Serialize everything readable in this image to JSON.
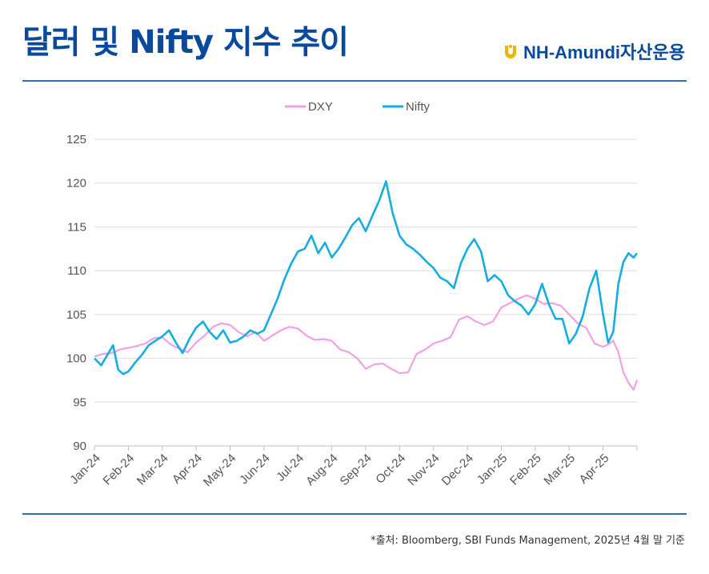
{
  "header": {
    "title": "달러 및 Nifty 지수 추이",
    "brand": "NH-Amundi자산운용",
    "brand_color": "#0a4a9e",
    "logo_color": "#f0b400"
  },
  "footer": {
    "source": "*출처: Bloomberg, SBI Funds Management, 2025년 4월 말 기준"
  },
  "chart_data": {
    "type": "line",
    "title": "",
    "xlabel": "",
    "ylabel": "",
    "ylim": [
      90,
      125
    ],
    "yticks": [
      90,
      95,
      100,
      105,
      110,
      115,
      120,
      125
    ],
    "xlim": [
      0,
      16
    ],
    "categories": [
      "Jan-24",
      "Feb-24",
      "Mar-24",
      "Apr-24",
      "May-24",
      "Jun-24",
      "Jul-24",
      "Aug-24",
      "Sep-24",
      "Oct-24",
      "Nov-24",
      "Dec-24",
      "Jan-25",
      "Feb-25",
      "Mar-25",
      "Apr-25"
    ],
    "grid": "horizontal",
    "legend": "top-center",
    "series": [
      {
        "name": "DXY",
        "color": "#f2a0e6",
        "x": [
          0,
          0.25,
          0.5,
          0.75,
          1.0,
          1.25,
          1.5,
          1.75,
          2.0,
          2.25,
          2.5,
          2.75,
          3.0,
          3.25,
          3.5,
          3.75,
          4.0,
          4.25,
          4.5,
          4.75,
          5.0,
          5.25,
          5.5,
          5.75,
          6.0,
          6.25,
          6.5,
          6.75,
          7.0,
          7.25,
          7.5,
          7.75,
          8.0,
          8.25,
          8.5,
          8.75,
          9.0,
          9.25,
          9.5,
          9.75,
          10.0,
          10.25,
          10.5,
          10.75,
          11.0,
          11.25,
          11.5,
          11.75,
          12.0,
          12.25,
          12.5,
          12.75,
          13.0,
          13.25,
          13.5,
          13.75,
          14.0,
          14.25,
          14.5,
          14.75,
          15.0,
          15.15,
          15.3,
          15.45,
          15.6,
          15.75,
          15.9,
          16.0
        ],
        "values": [
          100.2,
          100.5,
          100.6,
          101.0,
          101.2,
          101.4,
          101.7,
          102.3,
          102.4,
          101.6,
          101.1,
          100.7,
          101.8,
          102.6,
          103.6,
          104.0,
          103.8,
          103.0,
          102.5,
          103.0,
          102.0,
          102.6,
          103.2,
          103.6,
          103.4,
          102.6,
          102.1,
          102.2,
          102.0,
          101.0,
          100.7,
          100.0,
          98.8,
          99.3,
          99.4,
          98.8,
          98.3,
          98.4,
          100.5,
          101.0,
          101.7,
          102.0,
          102.4,
          104.4,
          104.8,
          104.2,
          103.8,
          104.2,
          105.8,
          106.3,
          106.8,
          107.2,
          106.8,
          106.2,
          106.3,
          106.0,
          105.0,
          104.0,
          103.5,
          101.7,
          101.3,
          101.6,
          102.0,
          100.7,
          98.4,
          97.2,
          96.4,
          97.5
        ]
      },
      {
        "name": "Nifty",
        "color": "#14aee0",
        "x": [
          0,
          0.2,
          0.4,
          0.55,
          0.7,
          0.85,
          1.0,
          1.2,
          1.4,
          1.6,
          1.8,
          2.0,
          2.2,
          2.4,
          2.6,
          2.8,
          3.0,
          3.2,
          3.4,
          3.6,
          3.8,
          4.0,
          4.2,
          4.4,
          4.6,
          4.8,
          5.0,
          5.2,
          5.4,
          5.6,
          5.8,
          6.0,
          6.2,
          6.4,
          6.6,
          6.8,
          7.0,
          7.2,
          7.4,
          7.6,
          7.8,
          8.0,
          8.2,
          8.4,
          8.6,
          8.8,
          9.0,
          9.2,
          9.4,
          9.6,
          9.8,
          10.0,
          10.2,
          10.4,
          10.6,
          10.8,
          11.0,
          11.2,
          11.4,
          11.6,
          11.8,
          12.0,
          12.2,
          12.4,
          12.6,
          12.8,
          13.0,
          13.2,
          13.4,
          13.6,
          13.8,
          14.0,
          14.2,
          14.4,
          14.6,
          14.8,
          15.0,
          15.15,
          15.3,
          15.45,
          15.6,
          15.75,
          15.9,
          16.0
        ],
        "values": [
          100.0,
          99.2,
          100.5,
          101.5,
          98.7,
          98.2,
          98.5,
          99.5,
          100.4,
          101.5,
          102.0,
          102.5,
          103.2,
          101.8,
          100.6,
          102.2,
          103.5,
          104.2,
          103.0,
          102.2,
          103.2,
          101.8,
          102.0,
          102.5,
          103.2,
          102.8,
          103.2,
          105.0,
          106.8,
          109.0,
          110.8,
          112.2,
          112.5,
          114.0,
          112.0,
          113.2,
          111.5,
          112.5,
          113.8,
          115.2,
          116.0,
          114.5,
          116.3,
          118.0,
          120.2,
          116.5,
          114.0,
          113.0,
          112.5,
          111.8,
          111.0,
          110.3,
          109.2,
          108.8,
          108.0,
          110.8,
          112.5,
          113.6,
          112.2,
          108.8,
          109.5,
          108.8,
          107.2,
          106.5,
          106.0,
          105.0,
          106.2,
          108.5,
          106.2,
          104.5,
          104.5,
          101.7,
          102.8,
          104.8,
          108.0,
          110.0,
          105.0,
          101.8,
          103.0,
          108.5,
          111.0,
          112.0,
          111.5,
          112.0
        ]
      }
    ]
  }
}
